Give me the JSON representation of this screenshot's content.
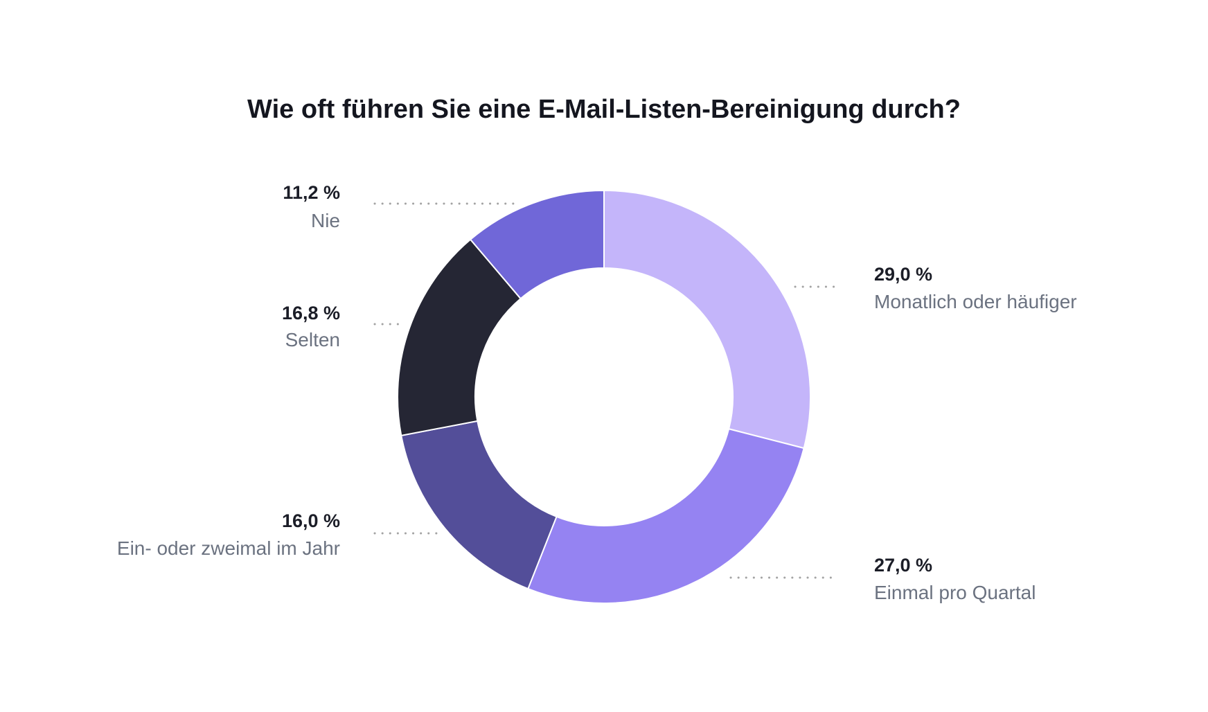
{
  "chart_data": {
    "type": "pie",
    "title": "Wie oft führen Sie eine E-Mail-Listen-Bereinigung durch?",
    "series": [
      {
        "values": [
          29.0,
          27.0,
          16.0,
          16.8,
          11.2
        ]
      }
    ],
    "categories": [
      "Monatlich oder häufiger",
      "Einmal pro Quartal",
      "Ein- oder zweimal im Jahr",
      "Selten",
      "Nie"
    ],
    "value_labels": [
      "29,0 %",
      "27,0 %",
      "16,0 %",
      "16,8 %",
      "11,2 %"
    ],
    "colors": [
      "#c4b5fa",
      "#9583f2",
      "#534e99",
      "#252634",
      "#7067d8"
    ],
    "donut": true,
    "start_angle": "12 o'clock",
    "direction": "clockwise",
    "legend": "none"
  }
}
